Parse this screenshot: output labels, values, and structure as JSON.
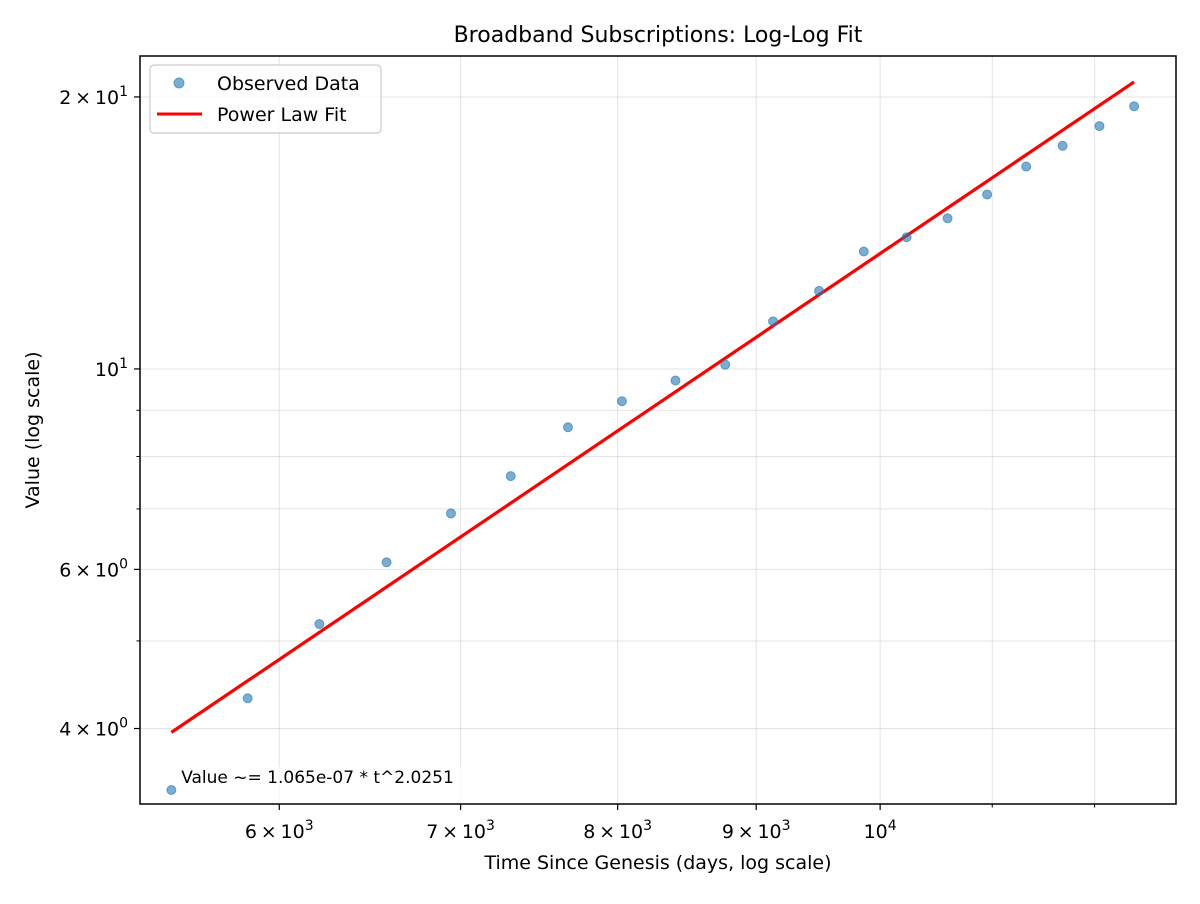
{
  "chart_data": {
    "type": "scatter",
    "title": "Broadband Subscriptions: Log-Log Fit",
    "xlabel": "Time Since Genesis (days, log scale)",
    "ylabel": "Value (log scale)",
    "xscale": "log",
    "yscale": "log",
    "xlim": [
      5330,
      12860
    ],
    "ylim": [
      3.3,
      22.2
    ],
    "grid": true,
    "legend_position": "upper left",
    "x_ticks": [
      {
        "value": 6000,
        "base": "6",
        "exp": "3",
        "mult": true
      },
      {
        "value": 7000,
        "base": "7",
        "exp": "3",
        "mult": true
      },
      {
        "value": 8000,
        "base": "8",
        "exp": "3",
        "mult": true
      },
      {
        "value": 9000,
        "base": "9",
        "exp": "3",
        "mult": true
      },
      {
        "value": 10000,
        "base": "",
        "exp": "4",
        "mult": false
      }
    ],
    "y_ticks": [
      {
        "value": 4,
        "base": "4",
        "exp": "0",
        "mult": true
      },
      {
        "value": 6,
        "base": "6",
        "exp": "0",
        "mult": true
      },
      {
        "value": 10,
        "base": "",
        "exp": "1",
        "mult": false
      },
      {
        "value": 20,
        "base": "2",
        "exp": "1",
        "mult": true
      }
    ],
    "y_minor_ticks": [
      5,
      7,
      8,
      9
    ],
    "x_minor_ticks": [
      11000,
      12000
    ],
    "series": [
      {
        "name": "Observed Data",
        "kind": "scatter",
        "color": "#1f77b4",
        "x": [
          5474,
          5841,
          6208,
          6573,
          6943,
          7305,
          7669,
          8029,
          8403,
          8766,
          9130,
          9494,
          9862,
          10228,
          10590,
          10952,
          11322,
          11678,
          12050,
          12410
        ],
        "y": [
          3.42,
          4.32,
          5.22,
          6.11,
          6.92,
          7.61,
          8.62,
          9.21,
          9.71,
          10.11,
          11.29,
          12.2,
          13.49,
          13.99,
          14.68,
          15.6,
          16.75,
          17.66,
          18.57,
          19.53
        ]
      },
      {
        "name": "Power Law Fit",
        "kind": "line",
        "color": "#ff0000",
        "coef": 1.065e-07,
        "exponent": 2.0251,
        "x_range": [
          5474,
          12410
        ]
      }
    ],
    "annotation": {
      "text": "Value ~= 1.065e-07 * t^2.0251",
      "x": 5520,
      "y": 3.48
    }
  }
}
